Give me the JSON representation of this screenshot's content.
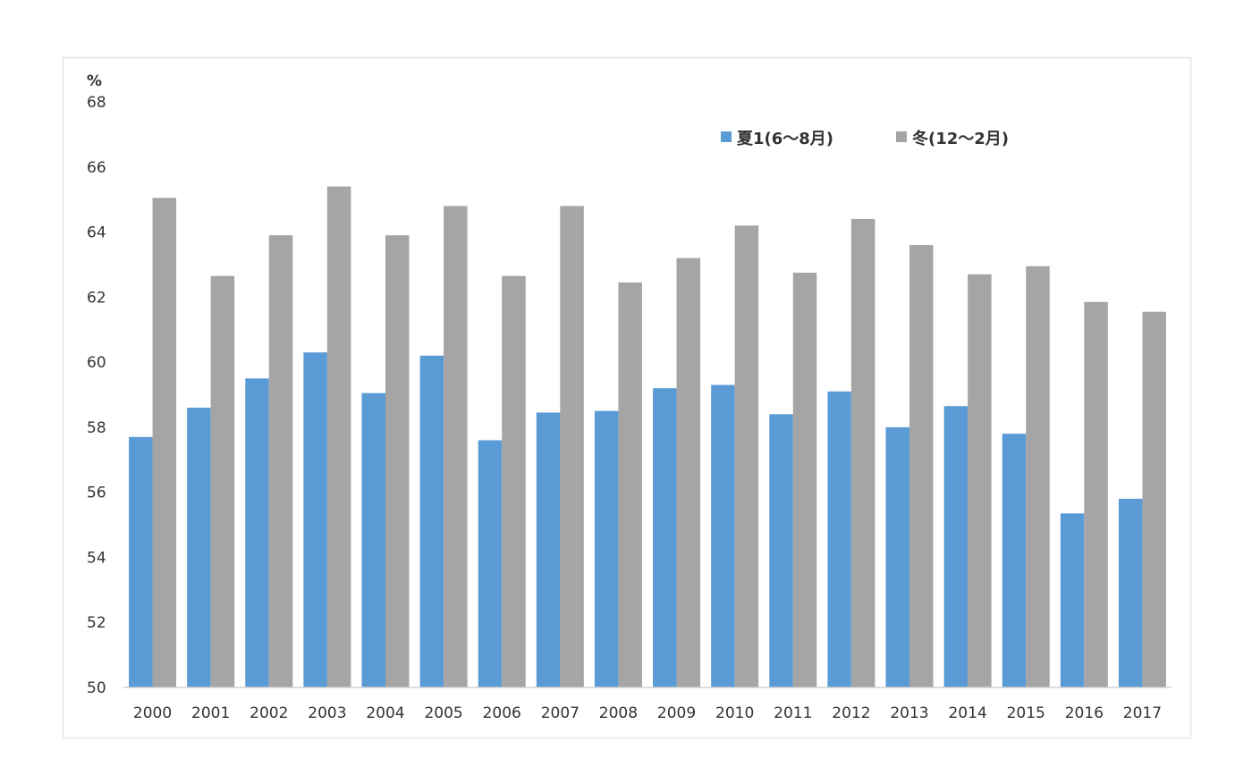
{
  "chart_data": {
    "type": "bar",
    "title": "",
    "xlabel": "",
    "ylabel": "%",
    "ylim": [
      50,
      68
    ],
    "yticks": [
      50,
      52,
      54,
      56,
      58,
      60,
      62,
      64,
      66,
      68
    ],
    "grid": false,
    "legend_position": "top-right",
    "categories": [
      "2000",
      "2001",
      "2002",
      "2003",
      "2004",
      "2005",
      "2006",
      "2007",
      "2008",
      "2009",
      "2010",
      "2011",
      "2012",
      "2013",
      "2014",
      "2015",
      "2016",
      "2017"
    ],
    "series": [
      {
        "name": "夏1(6〜8月)",
        "color": "#5b9bd5",
        "values": [
          57.7,
          58.6,
          59.5,
          60.3,
          59.05,
          60.2,
          57.6,
          58.45,
          58.5,
          59.2,
          59.3,
          58.4,
          59.1,
          58.0,
          58.65,
          57.8,
          55.35,
          55.8
        ]
      },
      {
        "name": "冬(12〜2月)",
        "color": "#a5a5a5",
        "values": [
          65.05,
          62.65,
          63.9,
          65.4,
          63.9,
          64.8,
          62.65,
          64.8,
          62.45,
          63.2,
          64.2,
          62.75,
          64.4,
          63.6,
          62.7,
          62.95,
          61.85,
          61.55
        ]
      }
    ]
  }
}
